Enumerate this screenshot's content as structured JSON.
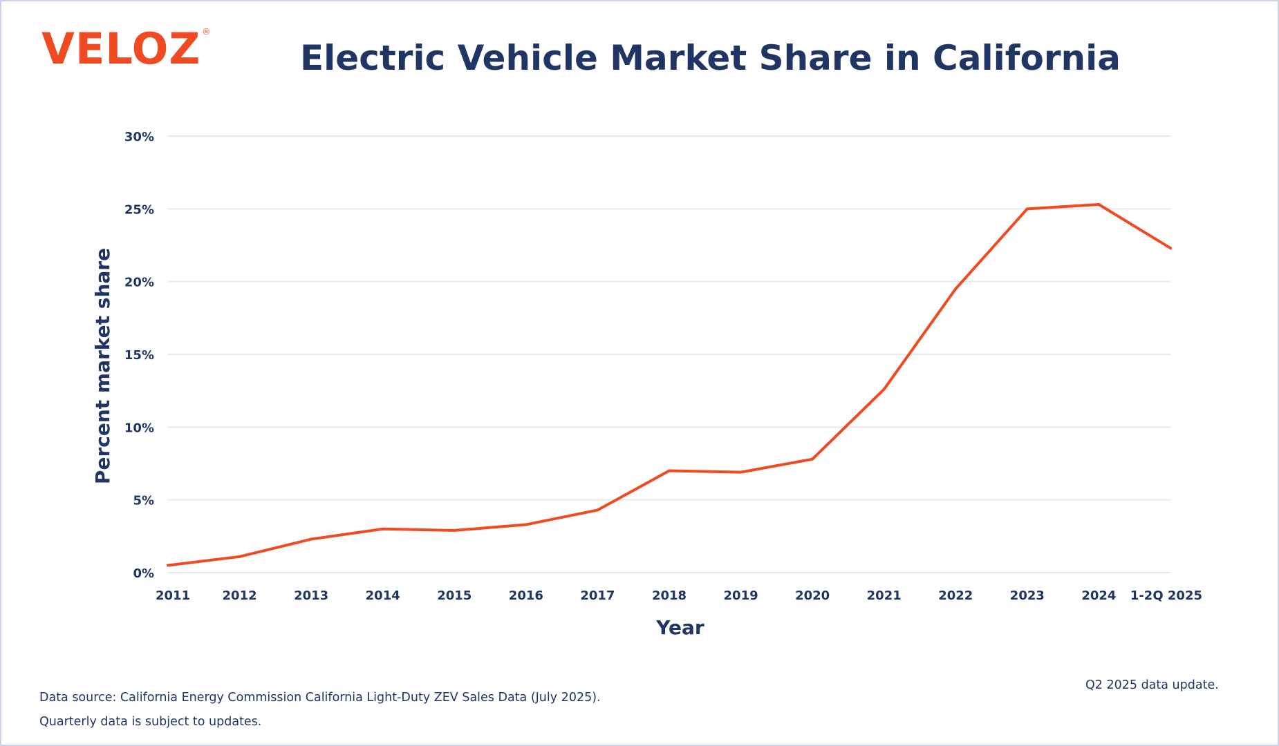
{
  "brand": {
    "logo_text": "VELOZ",
    "logo_mark": "®"
  },
  "chart_data": {
    "type": "line",
    "title": "Electric Vehicle Market Share in California",
    "xlabel": "Year",
    "ylabel": "Percent market share",
    "categories": [
      "2011",
      "2012",
      "2013",
      "2014",
      "2015",
      "2016",
      "2017",
      "2018",
      "2019",
      "2020",
      "2021",
      "2022",
      "2023",
      "2024",
      "1-2Q 2025"
    ],
    "series": [
      {
        "values": [
          0.5,
          1.1,
          2.3,
          3.0,
          2.9,
          3.3,
          4.3,
          7.0,
          6.9,
          7.8,
          12.6,
          19.5,
          25.0,
          25.3,
          22.3
        ]
      }
    ],
    "ylim": [
      0,
      30
    ],
    "yticks": [
      0,
      5,
      10,
      15,
      20,
      25,
      30
    ],
    "ytick_labels": [
      "0%",
      "5%",
      "10%",
      "15%",
      "20%",
      "25%",
      "30%"
    ],
    "grid": true,
    "colors": {
      "line": "#f04a23",
      "text": "#1f3563",
      "grid": "#e6e9f2"
    }
  },
  "footer": {
    "source_line1": "Data source: California Energy Commission California Light-Duty ZEV Sales Data (July 2025).",
    "source_line2": "Quarterly data is subject to updates.",
    "update_note": "Q2 2025 data update."
  }
}
